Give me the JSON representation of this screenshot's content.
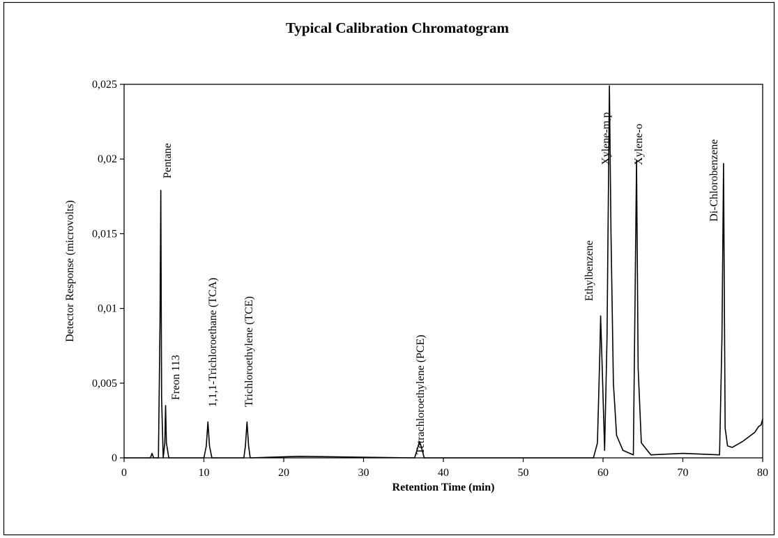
{
  "chart_data": {
    "type": "line",
    "title": "Typical Calibration Chromatogram",
    "x_label": "Retention Time (min)",
    "y_label": "Detector Response (microvolts)",
    "xlim": [
      0,
      80
    ],
    "ylim": [
      0,
      0.025
    ],
    "xticks": [
      0,
      10,
      20,
      30,
      40,
      50,
      60,
      70,
      80
    ],
    "yticks": [
      0,
      {
        "value": 0.005,
        "label": "0,005"
      },
      {
        "value": 0.01,
        "label": "0,01"
      },
      {
        "value": 0.015,
        "label": "0,015"
      },
      {
        "value": 0.02,
        "label": "0,02"
      },
      {
        "value": 0.025,
        "label": "0,025"
      }
    ],
    "grid": false,
    "annotations": [
      "Pentane",
      "Freon 113",
      "1,1,1-Trichloroethane (TCA)",
      "Trichloroethylene (TCE)",
      "Tetrachloroethylene (PCE)",
      "Ethylbenzene",
      "Xylene-m,p",
      "Xylene-o",
      "Di-Chlorobenzene"
    ],
    "series": [
      {
        "color": "#000000",
        "x": [
          0,
          3.3,
          3.5,
          3.7,
          4.3,
          4.5,
          4.6,
          4.7,
          4.9,
          5.1,
          5.2,
          5.3,
          5.6,
          10.0,
          10.3,
          10.5,
          10.7,
          11.0,
          15.0,
          15.2,
          15.4,
          15.6,
          15.8,
          22,
          36.4,
          36.8,
          37.0,
          37.2,
          37.6,
          58.8,
          59.3,
          59.6,
          59.7,
          59.9,
          60.2,
          60.5,
          60.8,
          61.0,
          61.3,
          61.7,
          62.5,
          63.8,
          64.0,
          64.2,
          64.4,
          64.8,
          66,
          70,
          74.6,
          74.9,
          75.1,
          75.3,
          75.6,
          76.2,
          77.5,
          79.0,
          79.5,
          79.8,
          80
        ],
        "values": [
          0,
          0,
          0.0003,
          0,
          0,
          0.009,
          0.0179,
          0.004,
          0,
          0.001,
          0.0035,
          0.001,
          0,
          0,
          0.0008,
          0.0024,
          0.0008,
          0,
          0,
          0.0008,
          0.0024,
          0.0008,
          0,
          0.0001,
          0,
          0.0007,
          0.0011,
          0.0008,
          0,
          0,
          0.001,
          0.007,
          0.0095,
          0.006,
          0.0005,
          0.008,
          0.0249,
          0.015,
          0.005,
          0.0015,
          0.0005,
          0.0002,
          0.01,
          0.0199,
          0.006,
          0.001,
          0.0002,
          0.0003,
          0.0002,
          0.008,
          0.0197,
          0.002,
          0.0008,
          0.0007,
          0.0011,
          0.0017,
          0.0021,
          0.0022,
          0.0026
        ]
      }
    ]
  }
}
